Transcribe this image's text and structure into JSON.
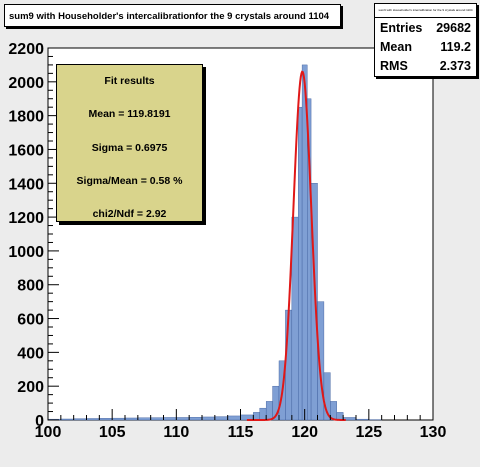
{
  "title": "sum9 with Householder's intercalibrationfor the 9 crystals around 1104",
  "stats": {
    "title": "sum9 with Householder's intercalibration for the 9 crystals around 1104",
    "rows": [
      {
        "label": "Entries",
        "value": "29682"
      },
      {
        "label": "Mean",
        "value": "119.2"
      },
      {
        "label": "RMS",
        "value": "2.373"
      }
    ]
  },
  "fit": {
    "header": "Fit results",
    "mean": "Mean  =  119.8191",
    "sigma": "Sigma =  0.6975",
    "sigma_over_mean": "Sigma/Mean =  0.58 %",
    "chi2": "chi2/Ndf =  2.92"
  },
  "chart_data": {
    "type": "bar",
    "title": "sum9 with Householder's intercalibrationfor the 9 crystals around 1104",
    "xlim": [
      100,
      130
    ],
    "ylim": [
      0,
      2200
    ],
    "x_ticks": [
      100,
      105,
      110,
      115,
      120,
      125,
      130
    ],
    "y_ticks": [
      0,
      200,
      400,
      600,
      800,
      1000,
      1200,
      1400,
      1600,
      1800,
      2000,
      2200
    ],
    "histogram": {
      "color": "#7f9fd4",
      "bins": [
        {
          "x": 100,
          "y": 5
        },
        {
          "x": 101,
          "y": 6
        },
        {
          "x": 102,
          "y": 8
        },
        {
          "x": 103,
          "y": 9
        },
        {
          "x": 104,
          "y": 10
        },
        {
          "x": 105,
          "y": 11
        },
        {
          "x": 106,
          "y": 12
        },
        {
          "x": 107,
          "y": 13
        },
        {
          "x": 108,
          "y": 14
        },
        {
          "x": 109,
          "y": 15
        },
        {
          "x": 110,
          "y": 15
        },
        {
          "x": 111,
          "y": 16
        },
        {
          "x": 112,
          "y": 18
        },
        {
          "x": 113,
          "y": 20
        },
        {
          "x": 114,
          "y": 24
        },
        {
          "x": 115,
          "y": 30
        },
        {
          "x": 116,
          "y": 45
        },
        {
          "x": 116.5,
          "y": 70
        },
        {
          "x": 117,
          "y": 110
        },
        {
          "x": 117.5,
          "y": 200
        },
        {
          "x": 118,
          "y": 350
        },
        {
          "x": 118.5,
          "y": 650
        },
        {
          "x": 119,
          "y": 1200
        },
        {
          "x": 119.5,
          "y": 1850
        },
        {
          "x": 119.8,
          "y": 2100
        },
        {
          "x": 120.2,
          "y": 1900
        },
        {
          "x": 120.5,
          "y": 1400
        },
        {
          "x": 121,
          "y": 700
        },
        {
          "x": 121.5,
          "y": 280
        },
        {
          "x": 122,
          "y": 110
        },
        {
          "x": 122.5,
          "y": 45
        },
        {
          "x": 123,
          "y": 15
        },
        {
          "x": 124,
          "y": 5
        },
        {
          "x": 125,
          "y": 2
        }
      ]
    },
    "fit": {
      "color": "#e01818",
      "mean": 119.8191,
      "sigma": 0.6975,
      "amplitude": 2060
    },
    "grid": false
  }
}
